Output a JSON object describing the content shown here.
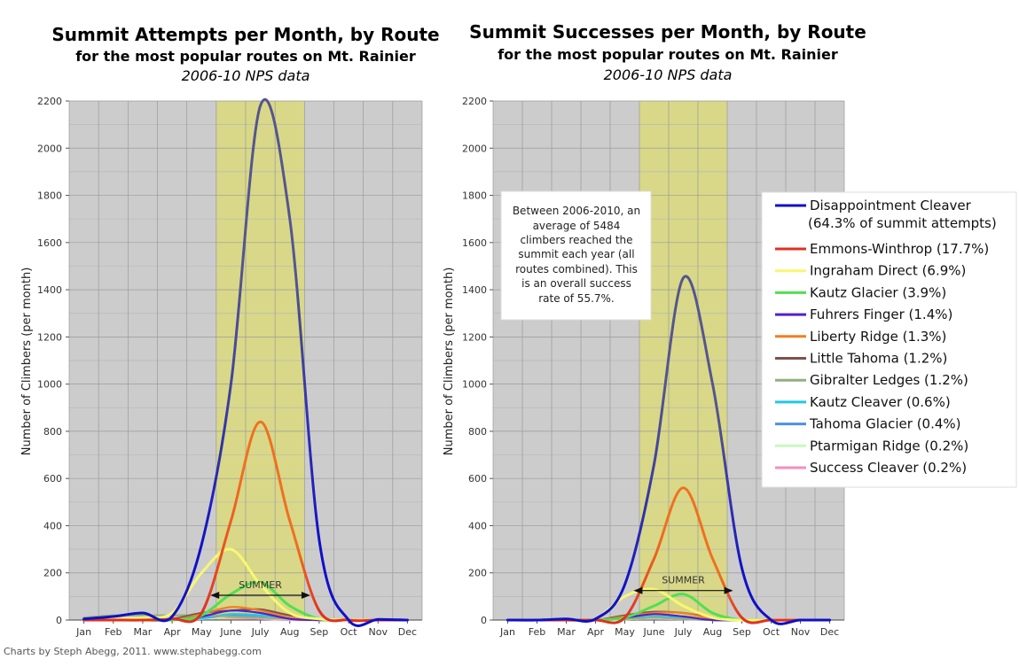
{
  "credit": "Charts by Steph Abegg, 2011. www.stephabegg.com",
  "chart_data": [
    {
      "type": "line",
      "title": "Summit Attempts per Month, by Route",
      "subtitle": "for the most popular routes on Mt. Rainier",
      "subtitle2": "2006-10 NPS data",
      "xlabel": "",
      "ylabel": "Number of Climbers (per month)",
      "ylim": [
        0,
        2200
      ],
      "yticks": [
        "0",
        "200",
        "400",
        "600",
        "800",
        "1000",
        "1200",
        "1400",
        "1600",
        "1800",
        "2000",
        "2200"
      ],
      "categories": [
        "Jan",
        "Feb",
        "Mar",
        "Apr",
        "May",
        "June",
        "July",
        "Aug",
        "Sep",
        "Oct",
        "Nov",
        "Dec"
      ],
      "summer_label": "SUMMER",
      "summer_span": [
        5.5,
        8.5
      ],
      "series": [
        {
          "name": "Disappointment Cleaver",
          "color": "#1010c8",
          "color2": "#55558f",
          "values": [
            5,
            15,
            30,
            15,
            320,
            1000,
            2180,
            1700,
            340,
            0,
            3,
            0
          ]
        },
        {
          "name": "Emmons-Winthrop",
          "color": "#e03020",
          "color2": "#f07020",
          "values": [
            0,
            0,
            0,
            5,
            30,
            420,
            840,
            420,
            40,
            0,
            0,
            0
          ]
        },
        {
          "name": "Ingraham Direct",
          "color": "#f8f870",
          "values": [
            0,
            5,
            10,
            30,
            200,
            300,
            150,
            30,
            5,
            0,
            0,
            0
          ]
        },
        {
          "name": "Kautz Glacier",
          "color": "#50e050",
          "values": [
            0,
            0,
            0,
            0,
            20,
            110,
            160,
            60,
            5,
            0,
            0,
            0
          ]
        },
        {
          "name": "Fuhrers Finger",
          "color": "#5020d0",
          "values": [
            0,
            0,
            0,
            0,
            15,
            40,
            30,
            5,
            0,
            0,
            0,
            0
          ]
        },
        {
          "name": "Liberty Ridge",
          "color": "#f08020",
          "values": [
            0,
            0,
            0,
            0,
            25,
            55,
            40,
            10,
            0,
            0,
            0,
            0
          ]
        },
        {
          "name": "Little Tahoma",
          "color": "#805050",
          "values": [
            0,
            0,
            0,
            5,
            30,
            40,
            45,
            20,
            5,
            0,
            0,
            0
          ]
        },
        {
          "name": "Gibralter Ledges",
          "color": "#90b080",
          "values": [
            10,
            20,
            20,
            20,
            20,
            15,
            10,
            5,
            0,
            0,
            0,
            0
          ]
        },
        {
          "name": "Kautz Cleaver",
          "color": "#20c8e8",
          "values": [
            0,
            0,
            0,
            0,
            10,
            25,
            20,
            5,
            0,
            0,
            0,
            0
          ]
        },
        {
          "name": "Tahoma Glacier",
          "color": "#5090e0",
          "values": [
            0,
            0,
            0,
            0,
            8,
            20,
            15,
            5,
            0,
            0,
            0,
            0
          ]
        },
        {
          "name": "Ptarmigan Ridge",
          "color": "#c8f8c0",
          "values": [
            0,
            0,
            0,
            0,
            5,
            15,
            10,
            3,
            0,
            0,
            0,
            0
          ]
        },
        {
          "name": "Success Cleaver",
          "color": "#f090c0",
          "values": [
            0,
            0,
            0,
            0,
            10,
            10,
            5,
            0,
            0,
            0,
            0,
            0
          ]
        }
      ]
    },
    {
      "type": "line",
      "title": "Summit Successes per Month, by Route",
      "subtitle": "for the most popular routes on Mt. Rainier",
      "subtitle2": "2006-10 NPS data",
      "xlabel": "",
      "ylabel": "Number of Climbers (per month)",
      "ylim": [
        0,
        2200
      ],
      "yticks": [
        "0",
        "200",
        "400",
        "600",
        "800",
        "1000",
        "1200",
        "1400",
        "1600",
        "1800",
        "2000",
        "2200"
      ],
      "categories": [
        "Jan",
        "Feb",
        "Mar",
        "Apr",
        "May",
        "June",
        "July",
        "Aug",
        "Sep",
        "Oct",
        "Nov",
        "Dec"
      ],
      "summer_label": "SUMMER",
      "summer_span": [
        5.5,
        8.5
      ],
      "annotation": [
        "Between 2006-2010, an",
        "average of 5484",
        "climbers reached the",
        "summit each year (all",
        "routes combined). This",
        "is an overall success",
        "rate of 55.7%."
      ],
      "series": [
        {
          "name": "Disappointment Cleaver",
          "color": "#1010c8",
          "color2": "#55558f",
          "values": [
            0,
            0,
            5,
            5,
            150,
            660,
            1450,
            1000,
            220,
            0,
            0,
            0
          ]
        },
        {
          "name": "Emmons-Winthrop",
          "color": "#e03020",
          "color2": "#f07020",
          "values": [
            0,
            0,
            0,
            0,
            10,
            260,
            560,
            260,
            10,
            0,
            0,
            0
          ]
        },
        {
          "name": "Ingraham Direct",
          "color": "#f8f870",
          "values": [
            0,
            0,
            0,
            5,
            100,
            130,
            60,
            10,
            0,
            0,
            0,
            0
          ]
        },
        {
          "name": "Kautz Glacier",
          "color": "#50e050",
          "values": [
            0,
            0,
            0,
            0,
            10,
            60,
            110,
            30,
            0,
            0,
            0,
            0
          ]
        },
        {
          "name": "Fuhrers Finger",
          "color": "#5020d0",
          "values": [
            0,
            0,
            0,
            0,
            10,
            25,
            15,
            0,
            0,
            0,
            0,
            0
          ]
        },
        {
          "name": "Liberty Ridge",
          "color": "#f08020",
          "values": [
            0,
            0,
            0,
            0,
            15,
            30,
            30,
            5,
            0,
            0,
            0,
            0
          ]
        },
        {
          "name": "Little Tahoma",
          "color": "#805050",
          "values": [
            0,
            0,
            0,
            0,
            20,
            35,
            30,
            10,
            0,
            0,
            0,
            0
          ]
        },
        {
          "name": "Gibralter Ledges",
          "color": "#90b080",
          "values": [
            0,
            0,
            0,
            0,
            5,
            10,
            5,
            0,
            0,
            0,
            0,
            0
          ]
        },
        {
          "name": "Kautz Cleaver",
          "color": "#20c8e8",
          "values": [
            0,
            0,
            0,
            0,
            5,
            15,
            10,
            0,
            0,
            0,
            0,
            0
          ]
        },
        {
          "name": "Tahoma Glacier",
          "color": "#5090e0",
          "values": [
            0,
            0,
            0,
            0,
            5,
            10,
            5,
            0,
            0,
            0,
            0,
            0
          ]
        },
        {
          "name": "Ptarmigan Ridge",
          "color": "#c8f8c0",
          "values": [
            0,
            0,
            0,
            0,
            3,
            8,
            5,
            0,
            0,
            0,
            0,
            0
          ]
        },
        {
          "name": "Success Cleaver",
          "color": "#f090c0",
          "values": [
            0,
            0,
            0,
            0,
            5,
            5,
            3,
            0,
            0,
            0,
            0,
            0
          ]
        }
      ]
    }
  ],
  "legend": {
    "items": [
      {
        "label": "Disappointment Cleaver",
        "sub": "(64.3% of summit attempts)",
        "color": "#1010c8"
      },
      {
        "label": "Emmons-Winthrop (17.7%)",
        "color": "#e03020"
      },
      {
        "label": "Ingraham Direct (6.9%)",
        "color": "#f8f870"
      },
      {
        "label": "Kautz Glacier (3.9%)",
        "color": "#50e050"
      },
      {
        "label": "Fuhrers Finger (1.4%)",
        "color": "#5020d0"
      },
      {
        "label": "Liberty Ridge (1.3%)",
        "color": "#f08020"
      },
      {
        "label": "Little Tahoma (1.2%)",
        "color": "#805050"
      },
      {
        "label": "Gibralter Ledges (1.2%)",
        "color": "#90b080"
      },
      {
        "label": "Kautz Cleaver (0.6%)",
        "color": "#20c8e8"
      },
      {
        "label": "Tahoma Glacier (0.4%)",
        "color": "#5090e0"
      },
      {
        "label": "Ptarmigan Ridge (0.2%)",
        "color": "#c8f8c0"
      },
      {
        "label": "Success Cleaver (0.2%)",
        "color": "#f090c0"
      }
    ]
  }
}
